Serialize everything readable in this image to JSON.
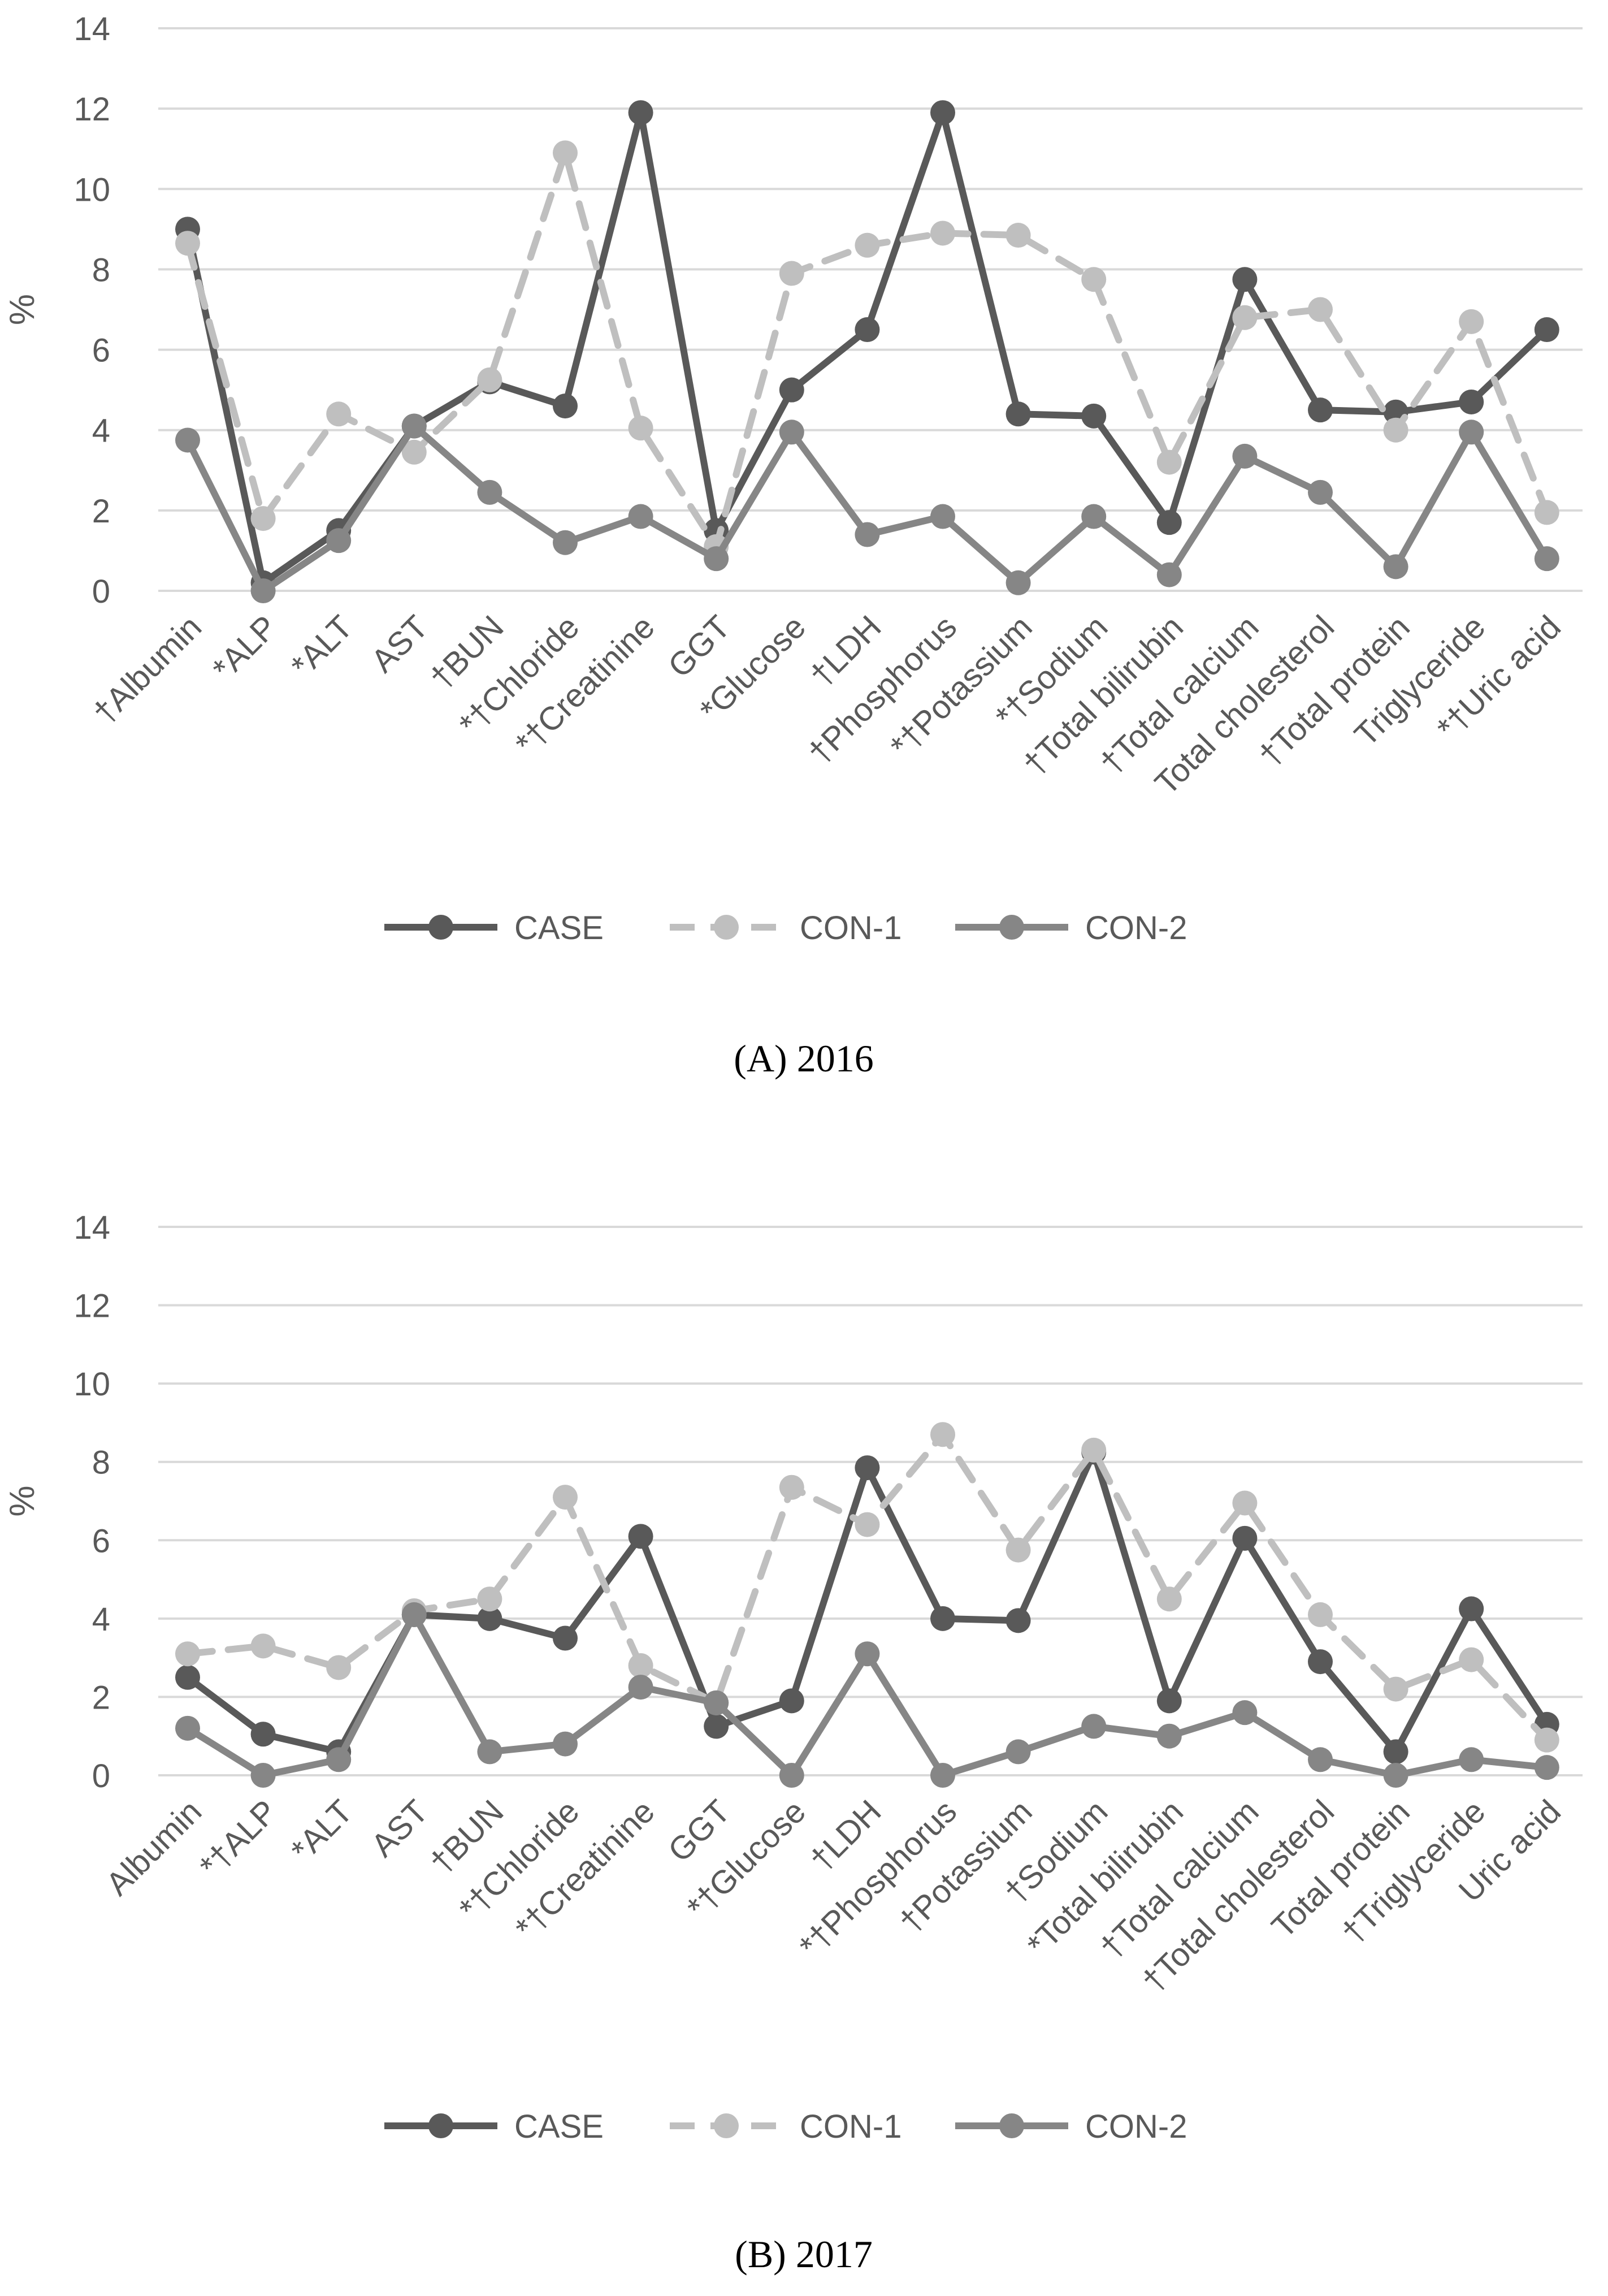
{
  "chart_data": [
    {
      "type": "line",
      "caption": "(A) 2016",
      "ylabel": "%",
      "ylim": [
        0,
        14
      ],
      "yticks": [
        0,
        2,
        4,
        6,
        8,
        10,
        12,
        14
      ],
      "grid": true,
      "legend_position": "bottom",
      "categories": [
        "†Albumin",
        "*ALP",
        "*ALT",
        "AST",
        "†BUN",
        "*†Chloride",
        "*†Creatinine",
        "GGT",
        "*Glucose",
        "†LDH",
        "†Phosphorus",
        "*†Potassium",
        "*†Sodium",
        "†Total bilirubin",
        "†Total calcium",
        "Total cholesterol",
        "†Total protein",
        "Triglyceride",
        "*†Uric acid"
      ],
      "series": [
        {
          "name": "CASE",
          "color": "#595959",
          "dash": "solid",
          "values": [
            9.0,
            0.2,
            1.5,
            4.1,
            5.2,
            4.6,
            11.9,
            1.5,
            5.0,
            6.5,
            11.9,
            4.4,
            4.35,
            1.7,
            7.75,
            4.5,
            4.45,
            4.7,
            6.5
          ]
        },
        {
          "name": "CON-1",
          "color": "#bfbfbf",
          "dash": "dashed",
          "values": [
            8.65,
            1.8,
            4.4,
            3.45,
            5.25,
            10.9,
            4.05,
            1.1,
            7.9,
            8.6,
            8.9,
            8.85,
            7.75,
            3.2,
            6.8,
            7.0,
            4.0,
            6.7,
            1.95
          ]
        },
        {
          "name": "CON-2",
          "color": "#868686",
          "dash": "solid",
          "values": [
            3.75,
            0.0,
            1.25,
            4.1,
            2.45,
            1.2,
            1.85,
            0.8,
            3.95,
            1.4,
            1.85,
            0.2,
            1.85,
            0.4,
            3.35,
            2.45,
            0.6,
            3.95,
            0.8
          ]
        }
      ]
    },
    {
      "type": "line",
      "caption": "(B) 2017",
      "ylabel": "%",
      "ylim": [
        0,
        14
      ],
      "yticks": [
        0,
        2,
        4,
        6,
        8,
        10,
        12,
        14
      ],
      "grid": true,
      "legend_position": "bottom",
      "categories": [
        "Albumin",
        "*†ALP",
        "*ALT",
        "AST",
        "†BUN",
        "*†Chloride",
        "*†Creatinine",
        "GGT",
        "*†Glucose",
        "†LDH",
        "*†Phosphorus",
        "†Potassium",
        "†Sodium",
        "*Total bilirubin",
        "†Total calcium",
        "†Total cholesterol",
        "Total protein",
        "†Triglyceride",
        "Uric acid"
      ],
      "series": [
        {
          "name": "CASE",
          "color": "#595959",
          "dash": "solid",
          "values": [
            2.5,
            1.05,
            0.6,
            4.1,
            4.0,
            3.5,
            6.1,
            1.25,
            1.9,
            7.85,
            4.0,
            3.95,
            8.25,
            1.9,
            6.05,
            2.9,
            0.6,
            4.25,
            1.3
          ]
        },
        {
          "name": "CON-1",
          "color": "#bfbfbf",
          "dash": "dashed",
          "values": [
            3.1,
            3.3,
            2.75,
            4.2,
            4.5,
            7.1,
            2.8,
            1.85,
            7.35,
            6.4,
            8.7,
            5.75,
            8.3,
            4.5,
            6.95,
            4.1,
            2.2,
            2.95,
            0.9
          ]
        },
        {
          "name": "CON-2",
          "color": "#868686",
          "dash": "solid",
          "values": [
            1.2,
            0.0,
            0.4,
            4.1,
            0.6,
            0.8,
            2.25,
            1.85,
            0.0,
            3.1,
            0.0,
            0.6,
            1.25,
            1.0,
            1.6,
            0.4,
            0.0,
            0.4,
            0.2
          ]
        }
      ]
    }
  ]
}
